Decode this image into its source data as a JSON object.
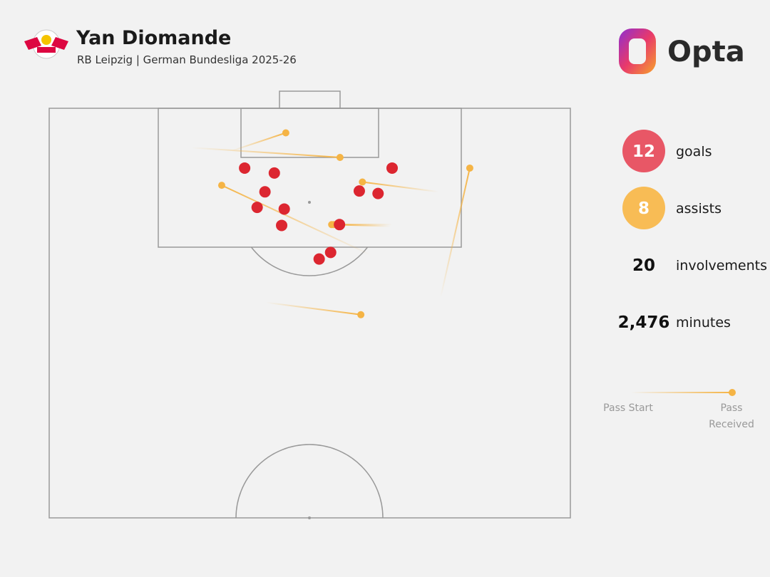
{
  "header": {
    "title": "Yan Diomande",
    "subtitle": "RB Leipzig | German Bundesliga 2025-26",
    "brand": "Opta"
  },
  "chart_data": {
    "type": "pitch",
    "xlim": [
      50,
      100
    ],
    "ylim": [
      0,
      100
    ],
    "goals": {
      "color": "#dc2630",
      "x": [
        92.7,
        92.1,
        89.8,
        87.9,
        87.7,
        85.7,
        89.9,
        89.6,
        92.7,
        85.8,
        82.4,
        81.6
      ],
      "y": [
        37.5,
        43.2,
        41.4,
        39.9,
        45.1,
        44.6,
        59.5,
        63.1,
        65.8,
        55.7,
        54.0,
        51.8
      ]
    },
    "assists": {
      "color": "#f5b445",
      "start_x": [
        94.8,
        95.2,
        82.1,
        89.8,
        85.8,
        85.6,
        76.9,
        76.3
      ],
      "start_y": [
        35.0,
        27.2,
        61.7,
        74.7,
        65.8,
        65.5,
        75.1,
        41.6
      ],
      "end_x": [
        97.0,
        94.0,
        90.6,
        91.0,
        85.8,
        85.8,
        92.7,
        74.8
      ],
      "end_y": [
        45.4,
        55.8,
        33.1,
        60.1,
        54.2,
        54.6,
        80.7,
        59.8
      ]
    },
    "stats": [
      {
        "name": "goals",
        "value": 12,
        "color": "#e85766"
      },
      {
        "name": "assists",
        "value": 8,
        "color": "#f8bc55"
      },
      {
        "name": "involvements",
        "value": 20
      },
      {
        "name": "minutes",
        "value": 2476,
        "value_label": "2,476"
      }
    ],
    "legend": {
      "start": "Pass Start",
      "end": "Pass Received"
    }
  }
}
